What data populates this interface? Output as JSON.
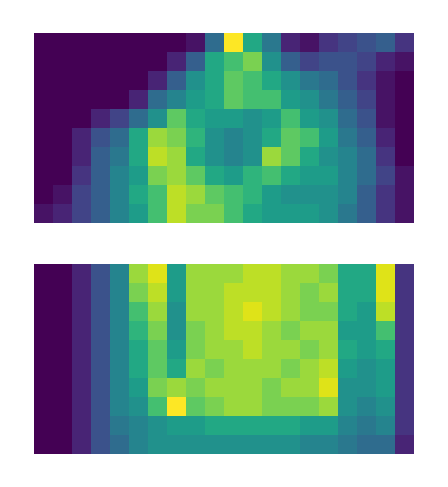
{
  "chart_data": [
    {
      "type": "heatmap",
      "tick_labels": false,
      "zlim": [
        0,
        1
      ],
      "cells": [
        [
          0,
          0,
          0,
          0,
          0,
          0,
          0,
          0,
          0.05,
          0.35,
          1.0,
          0.6,
          0.4,
          0.1,
          0.05,
          0.15,
          0.2,
          0.25,
          0.3,
          0.15
        ],
        [
          0,
          0,
          0,
          0,
          0,
          0,
          0,
          0.1,
          0.3,
          0.6,
          0.7,
          0.8,
          0.5,
          0.3,
          0.2,
          0.25,
          0.25,
          0.2,
          0.1,
          0.05
        ],
        [
          0,
          0,
          0,
          0,
          0,
          0,
          0.1,
          0.3,
          0.5,
          0.6,
          0.75,
          0.7,
          0.6,
          0.5,
          0.4,
          0.35,
          0.25,
          0.15,
          0.05,
          0
        ],
        [
          0,
          0,
          0,
          0,
          0,
          0.1,
          0.35,
          0.45,
          0.55,
          0.6,
          0.75,
          0.7,
          0.7,
          0.55,
          0.5,
          0.4,
          0.3,
          0.2,
          0.05,
          0
        ],
        [
          0,
          0,
          0,
          0.1,
          0.2,
          0.35,
          0.5,
          0.75,
          0.6,
          0.55,
          0.55,
          0.5,
          0.55,
          0.7,
          0.55,
          0.5,
          0.35,
          0.25,
          0.05,
          0
        ],
        [
          0,
          0,
          0.1,
          0.25,
          0.35,
          0.6,
          0.85,
          0.8,
          0.65,
          0.5,
          0.45,
          0.5,
          0.6,
          0.75,
          0.7,
          0.55,
          0.4,
          0.3,
          0.1,
          0
        ],
        [
          0,
          0,
          0.1,
          0.3,
          0.4,
          0.6,
          0.9,
          0.85,
          0.6,
          0.5,
          0.45,
          0.5,
          0.85,
          0.75,
          0.6,
          0.5,
          0.45,
          0.35,
          0.15,
          0
        ],
        [
          0,
          0,
          0.15,
          0.3,
          0.45,
          0.55,
          0.8,
          0.85,
          0.75,
          0.6,
          0.55,
          0.65,
          0.7,
          0.6,
          0.55,
          0.55,
          0.45,
          0.35,
          0.2,
          0.05
        ],
        [
          0,
          0.05,
          0.2,
          0.3,
          0.45,
          0.6,
          0.7,
          0.9,
          0.85,
          0.75,
          0.7,
          0.65,
          0.55,
          0.5,
          0.5,
          0.5,
          0.45,
          0.3,
          0.15,
          0.05
        ],
        [
          0.05,
          0.1,
          0.2,
          0.3,
          0.45,
          0.55,
          0.7,
          0.9,
          0.8,
          0.8,
          0.7,
          0.6,
          0.55,
          0.55,
          0.55,
          0.5,
          0.4,
          0.3,
          0.15,
          0.05
        ]
      ]
    },
    {
      "type": "heatmap",
      "tick_labels": false,
      "zlim": [
        0,
        1
      ],
      "cells": [
        [
          0,
          0,
          0.1,
          0.25,
          0.45,
          0.85,
          0.95,
          0.55,
          0.85,
          0.85,
          0.85,
          0.9,
          0.9,
          0.85,
          0.85,
          0.8,
          0.6,
          0.6,
          0.95,
          0.15
        ],
        [
          0,
          0,
          0.1,
          0.25,
          0.45,
          0.8,
          0.9,
          0.55,
          0.85,
          0.85,
          0.9,
          0.9,
          0.9,
          0.85,
          0.8,
          0.85,
          0.6,
          0.6,
          0.95,
          0.15
        ],
        [
          0,
          0,
          0.1,
          0.25,
          0.45,
          0.7,
          0.85,
          0.5,
          0.85,
          0.85,
          0.9,
          0.95,
          0.9,
          0.85,
          0.8,
          0.8,
          0.6,
          0.55,
          0.9,
          0.15
        ],
        [
          0,
          0,
          0.1,
          0.25,
          0.45,
          0.65,
          0.8,
          0.5,
          0.8,
          0.85,
          0.9,
          0.9,
          0.85,
          0.8,
          0.85,
          0.85,
          0.55,
          0.55,
          0.7,
          0.15
        ],
        [
          0,
          0,
          0.1,
          0.25,
          0.45,
          0.6,
          0.75,
          0.55,
          0.8,
          0.85,
          0.85,
          0.9,
          0.85,
          0.85,
          0.8,
          0.85,
          0.6,
          0.55,
          0.6,
          0.15
        ],
        [
          0,
          0,
          0.1,
          0.25,
          0.45,
          0.6,
          0.75,
          0.6,
          0.85,
          0.8,
          0.85,
          0.85,
          0.85,
          0.8,
          0.85,
          0.9,
          0.55,
          0.5,
          0.55,
          0.15
        ],
        [
          0,
          0,
          0.1,
          0.25,
          0.45,
          0.55,
          0.8,
          0.85,
          0.8,
          0.85,
          0.85,
          0.85,
          0.8,
          0.85,
          0.85,
          0.95,
          0.5,
          0.5,
          0.55,
          0.15
        ],
        [
          0,
          0,
          0.1,
          0.25,
          0.45,
          0.5,
          0.7,
          1.0,
          0.75,
          0.8,
          0.85,
          0.85,
          0.8,
          0.8,
          0.8,
          0.85,
          0.5,
          0.45,
          0.5,
          0.15
        ],
        [
          0,
          0,
          0.1,
          0.25,
          0.4,
          0.45,
          0.5,
          0.55,
          0.55,
          0.6,
          0.6,
          0.6,
          0.6,
          0.6,
          0.55,
          0.55,
          0.45,
          0.4,
          0.45,
          0.15
        ],
        [
          0,
          0,
          0.1,
          0.25,
          0.35,
          0.45,
          0.5,
          0.5,
          0.5,
          0.5,
          0.5,
          0.5,
          0.5,
          0.5,
          0.45,
          0.45,
          0.4,
          0.35,
          0.35,
          0.1
        ]
      ]
    }
  ]
}
